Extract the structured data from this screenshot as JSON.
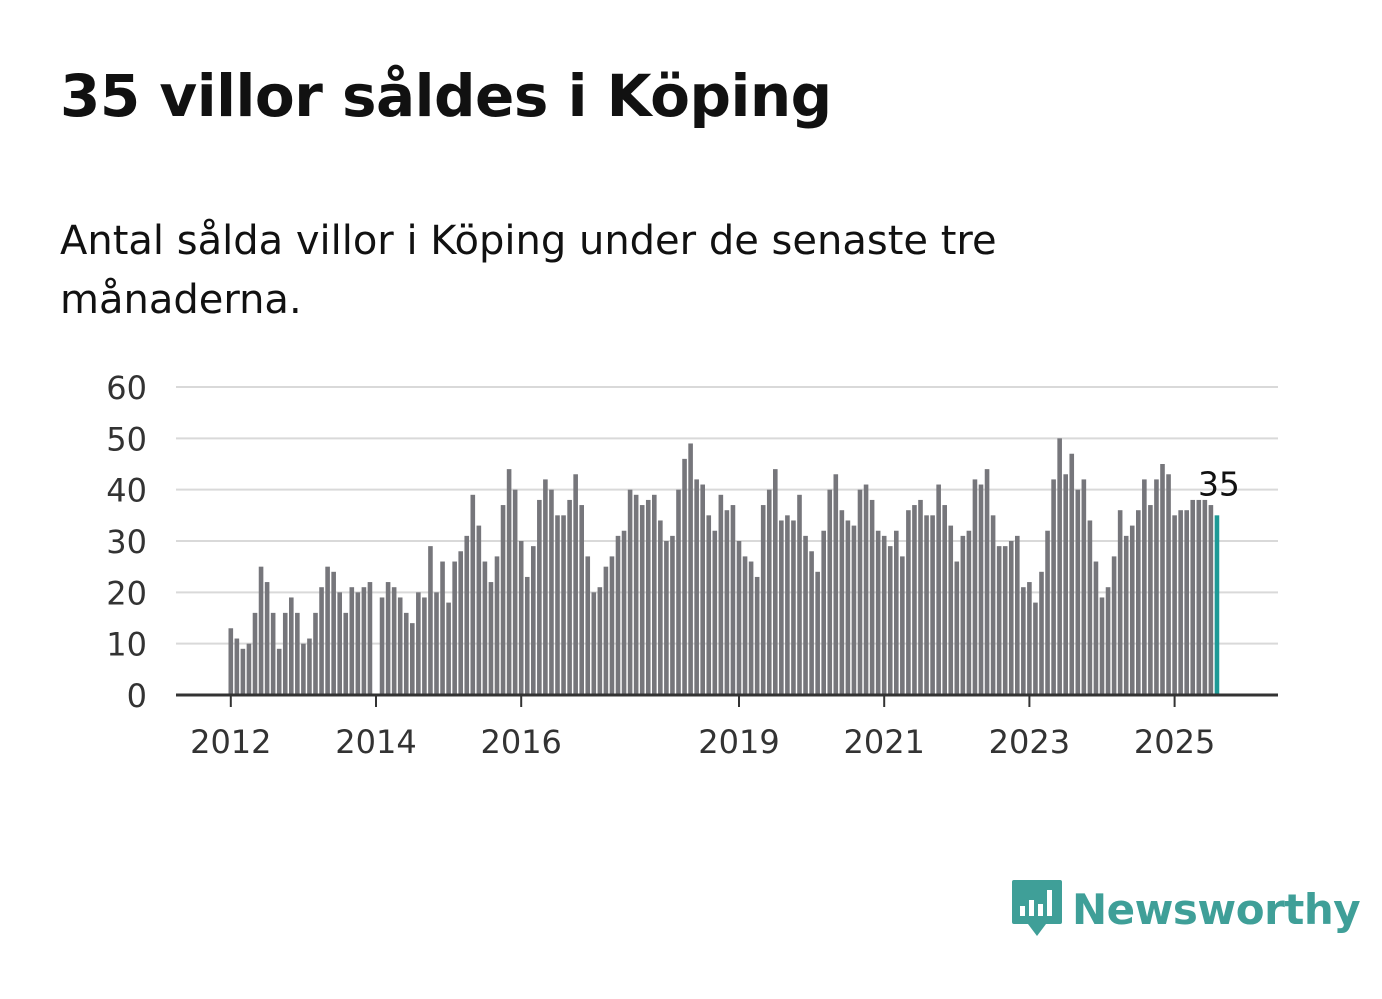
{
  "title": "35 villor såldes i Köping",
  "subtitle": "Antal sålda villor i Köping under de senaste tre månaderna.",
  "brand": {
    "name": "Newsworthy",
    "color": "#3f9f98",
    "icon": "newsworthy-logo-icon"
  },
  "colors": {
    "bar": "#76767b",
    "highlight": "#1e9a96",
    "grid": "#d9d9d9",
    "axis": "#333333"
  },
  "chart_data": {
    "type": "bar",
    "title": "35 villor såldes i Köping",
    "xlabel": "",
    "ylabel": "",
    "ylim": [
      0,
      60
    ],
    "yticks": [
      0,
      10,
      20,
      30,
      40,
      50,
      60
    ],
    "xticks": [
      "2012",
      "2014",
      "2016",
      "2019",
      "2021",
      "2023",
      "2025"
    ],
    "grid": true,
    "start_month": "2012-01",
    "highlight_last": true,
    "annotation": {
      "text": "35",
      "target": "last"
    },
    "values": [
      13,
      11,
      9,
      10,
      16,
      25,
      22,
      16,
      9,
      16,
      19,
      16,
      10,
      11,
      16,
      21,
      25,
      24,
      20,
      16,
      21,
      20,
      21,
      22,
      null,
      19,
      22,
      21,
      19,
      16,
      14,
      20,
      19,
      29,
      20,
      26,
      18,
      26,
      28,
      31,
      39,
      33,
      26,
      22,
      27,
      37,
      44,
      40,
      30,
      23,
      29,
      38,
      42,
      40,
      35,
      35,
      38,
      43,
      37,
      27,
      20,
      21,
      25,
      27,
      31,
      32,
      40,
      39,
      37,
      38,
      39,
      34,
      30,
      31,
      40,
      46,
      49,
      42,
      41,
      35,
      32,
      39,
      36,
      37,
      30,
      27,
      26,
      23,
      37,
      40,
      44,
      34,
      35,
      34,
      39,
      31,
      28,
      24,
      32,
      40,
      43,
      36,
      34,
      33,
      40,
      41,
      38,
      32,
      31,
      29,
      32,
      27,
      36,
      37,
      38,
      35,
      35,
      41,
      37,
      33,
      26,
      31,
      32,
      42,
      41,
      44,
      35,
      29,
      29,
      30,
      31,
      21,
      22,
      18,
      24,
      32,
      42,
      50,
      43,
      47,
      40,
      42,
      34,
      26,
      19,
      21,
      27,
      36,
      31,
      33,
      36,
      42,
      37,
      42,
      45,
      43,
      35,
      36,
      36,
      38,
      38,
      38,
      37,
      35
    ]
  }
}
